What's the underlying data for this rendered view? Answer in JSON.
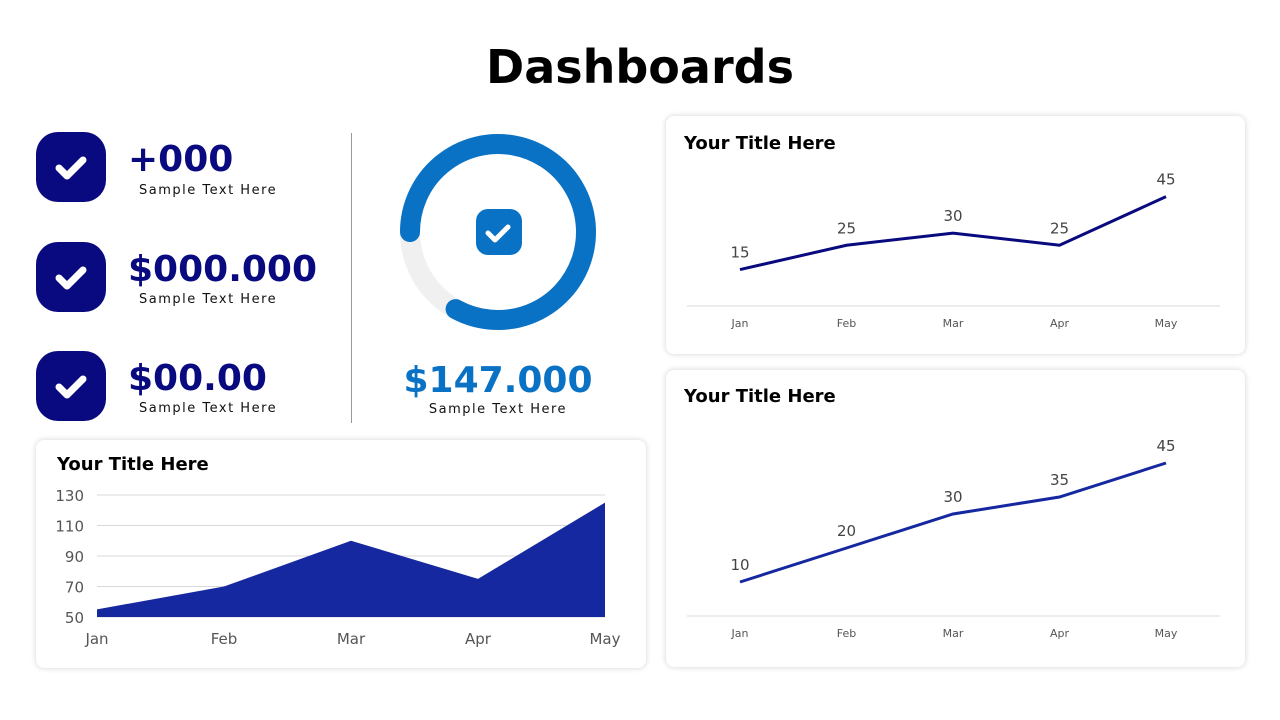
{
  "title": "Dashboards",
  "kpis": [
    {
      "value": "+000",
      "label": "Sample Text Here",
      "icon": "check-icon"
    },
    {
      "value": "$000.000",
      "label": "Sample Text Here",
      "icon": "check-icon"
    },
    {
      "value": "$00.00",
      "label": "Sample Text Here",
      "icon": "check-icon"
    }
  ],
  "donut": {
    "value": "$147.000",
    "label": "Sample Text Here",
    "progress": 0.83,
    "color": "#0a72c4",
    "track": "#f0f0f0"
  },
  "colors": {
    "navy": "#0a0a80",
    "area": "#1628a0",
    "line": "#0a0a80",
    "line2": "#1628a0"
  },
  "chart_data": [
    {
      "type": "area",
      "title": "Your Title Here",
      "categories": [
        "Jan",
        "Feb",
        "Mar",
        "Apr",
        "May"
      ],
      "values": [
        55,
        70,
        100,
        75,
        125
      ],
      "ylim": [
        50,
        130
      ],
      "yticks": [
        50,
        70,
        90,
        110,
        130
      ],
      "grid": true
    },
    {
      "type": "line",
      "title": "Your Title Here",
      "categories": [
        "Jan",
        "Feb",
        "Mar",
        "Apr",
        "May"
      ],
      "values": [
        15,
        25,
        30,
        25,
        45
      ],
      "data_labels": true
    },
    {
      "type": "line",
      "title": "Your Title Here",
      "categories": [
        "Jan",
        "Feb",
        "Mar",
        "Apr",
        "May"
      ],
      "values": [
        10,
        20,
        30,
        35,
        45
      ],
      "data_labels": true
    }
  ]
}
